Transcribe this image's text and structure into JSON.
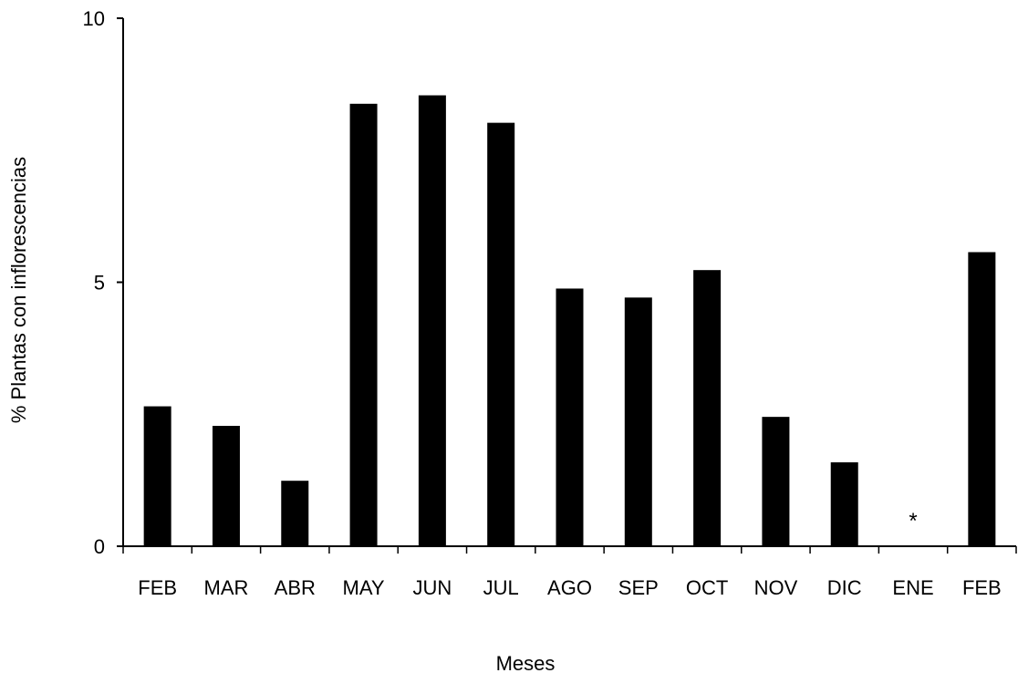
{
  "chart_data": {
    "type": "bar",
    "title": "",
    "xlabel": "Meses",
    "ylabel": "% Plantas con inflorescencias",
    "ylim": [
      0,
      10
    ],
    "yticks": [
      0,
      5,
      10
    ],
    "categories": [
      "FEB",
      "MAR",
      "ABR",
      "MAY",
      "JUN",
      "JUL",
      "AGO",
      "SEP",
      "OCT",
      "NOV",
      "DIC",
      "ENE",
      "FEB"
    ],
    "values": [
      2.65,
      2.28,
      1.24,
      8.38,
      8.54,
      8.02,
      4.88,
      4.71,
      5.23,
      2.45,
      1.59,
      0,
      5.57
    ],
    "bar_color": "#000000",
    "annotations": [
      {
        "category_index": 11,
        "text": "*"
      }
    ],
    "grid": false,
    "legend": "none"
  }
}
